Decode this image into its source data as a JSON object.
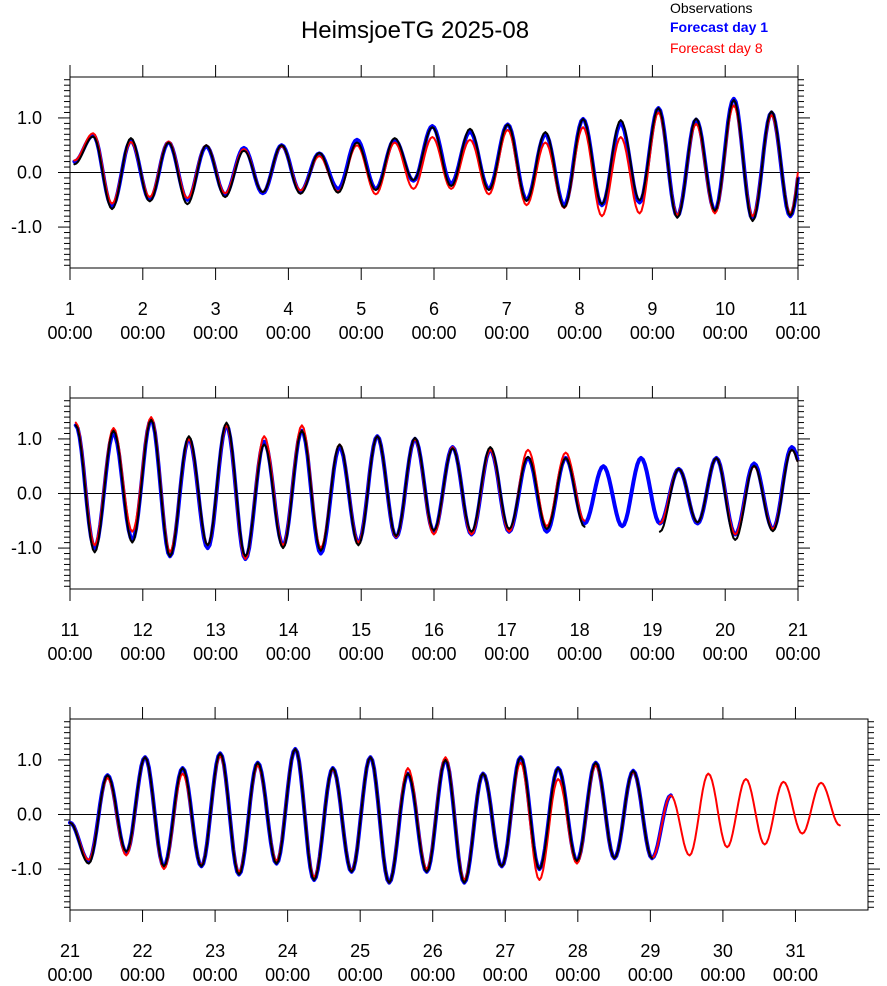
{
  "title": "HeimsjoeTG 2025-08",
  "legend": [
    {
      "label": "Observations",
      "color": "#000000",
      "bold": false
    },
    {
      "label": "Forecast day 1",
      "color": "#0000ff",
      "bold": true
    },
    {
      "label": "Forecast day 8",
      "color": "#ff0000",
      "bold": false
    }
  ],
  "chart_data": [
    {
      "type": "line",
      "xlim": [
        1,
        11
      ],
      "ylim": [
        -1.75,
        1.75
      ],
      "y_ticks": [
        "1.0",
        "0.0",
        "-1.0"
      ],
      "x_ticks": [
        {
          "day": "1",
          "time": "00:00"
        },
        {
          "day": "2",
          "time": "00:00"
        },
        {
          "day": "3",
          "time": "00:00"
        },
        {
          "day": "4",
          "time": "00:00"
        },
        {
          "day": "5",
          "time": "00:00"
        },
        {
          "day": "6",
          "time": "00:00"
        },
        {
          "day": "7",
          "time": "00:00"
        },
        {
          "day": "8",
          "time": "00:00"
        },
        {
          "day": "9",
          "time": "00:00"
        },
        {
          "day": "10",
          "time": "00:00"
        },
        {
          "day": "11",
          "time": "00:00"
        }
      ],
      "extrema": [
        0.2,
        0.68,
        -0.62,
        0.58,
        -0.5,
        0.55,
        -0.5,
        0.48,
        -0.4,
        0.45,
        -0.38,
        0.5,
        -0.35,
        0.35,
        -0.3,
        0.6,
        -0.3,
        0.6,
        -0.15,
        0.85,
        -0.2,
        0.75,
        -0.3,
        0.88,
        -0.5,
        0.7,
        -0.6,
        0.98,
        -0.6,
        0.9,
        -0.55,
        1.18,
        -0.8,
        0.97,
        -0.7,
        1.35,
        -0.85,
        1.1,
        -0.8,
        1.2
      ],
      "series": [
        {
          "name": "Observations",
          "color": "#000000",
          "width": 2,
          "dy": [
            -0.05,
            -0.02,
            -0.05,
            0.05,
            -0.03,
            0.0,
            -0.08,
            0.02,
            -0.05,
            -0.05,
            0.02,
            0.0,
            -0.04,
            0.01,
            -0.07,
            -0.05,
            -0.02,
            0.03,
            0.01,
            -0.02,
            -0.05,
            0.05,
            -0.02,
            0.0,
            -0.02,
            0.04,
            -0.04,
            0.0,
            0.02,
            0.06,
            0.04,
            0.0,
            -0.03,
            0.02,
            0.0,
            -0.02,
            -0.04,
            0.02,
            0.01,
            -0.02
          ]
        },
        {
          "name": "Forecast day 1",
          "color": "#0000ff",
          "width": 4,
          "dy": [
            0,
            0,
            0,
            0,
            0,
            0,
            0,
            0,
            0,
            0,
            0,
            0,
            0,
            0,
            0,
            0,
            0,
            0,
            0,
            0,
            0,
            0,
            0,
            0,
            0,
            0,
            0,
            0,
            0,
            0,
            0,
            0,
            0,
            0,
            0,
            0,
            0,
            0,
            0,
            0
          ]
        },
        {
          "name": "Forecast day 8",
          "color": "#ff0000",
          "width": 2,
          "dy": [
            0.02,
            0.04,
            0.05,
            -0.02,
            0.05,
            0.02,
            0.03,
            0.02,
            0.02,
            -0.02,
            0.02,
            -0.02,
            0.02,
            -0.05,
            -0.05,
            -0.1,
            -0.1,
            -0.05,
            -0.15,
            -0.2,
            -0.1,
            -0.15,
            -0.1,
            -0.1,
            -0.1,
            -0.15,
            -0.05,
            -0.15,
            -0.2,
            -0.25,
            -0.2,
            -0.08,
            0.02,
            -0.08,
            -0.05,
            -0.12,
            0.05,
            -0.05,
            0.05,
            0.2
          ]
        }
      ]
    },
    {
      "type": "line",
      "xlim": [
        11,
        21
      ],
      "ylim": [
        -1.75,
        1.75
      ],
      "y_ticks": [
        "1.0",
        "0.0",
        "-1.0"
      ],
      "x_ticks": [
        {
          "day": "11",
          "time": "00:00"
        },
        {
          "day": "12",
          "time": "00:00"
        },
        {
          "day": "13",
          "time": "00:00"
        },
        {
          "day": "14",
          "time": "00:00"
        },
        {
          "day": "15",
          "time": "00:00"
        },
        {
          "day": "16",
          "time": "00:00"
        },
        {
          "day": "17",
          "time": "00:00"
        },
        {
          "day": "18",
          "time": "00:00"
        },
        {
          "day": "19",
          "time": "00:00"
        },
        {
          "day": "20",
          "time": "00:00"
        },
        {
          "day": "21",
          "time": "00:00"
        }
      ],
      "extrema": [
        1.25,
        -1.0,
        1.1,
        -0.85,
        1.35,
        -1.15,
        1.0,
        -1.0,
        1.25,
        -1.2,
        0.95,
        -0.95,
        1.15,
        -1.1,
        0.85,
        -0.9,
        1.05,
        -0.8,
        1.0,
        -0.7,
        0.85,
        -0.75,
        0.8,
        -0.7,
        0.65,
        -0.7,
        0.65,
        -0.55,
        0.5,
        -0.6,
        0.65,
        -0.55,
        0.45,
        -0.55,
        0.65,
        -0.75,
        0.55,
        -0.65,
        0.85,
        -0.2
      ],
      "series": [
        {
          "name": "Observations",
          "color": "#000000",
          "width": 2,
          "dy": [
            0.0,
            -0.08,
            0.05,
            -0.05,
            0.0,
            0.0,
            0.05,
            0.05,
            0.05,
            0.05,
            -0.05,
            -0.05,
            0.0,
            0.05,
            0.05,
            -0.05,
            0.0,
            0.02,
            0.02,
            0.02,
            -0.02,
            0.05,
            0.05,
            0.05,
            0.02,
            0.05,
            0.0,
            -0.06,
            null,
            null,
            null,
            -0.15,
            0.0,
            0.02,
            0.0,
            -0.1,
            -0.04,
            -0.04,
            -0.05,
            0.0
          ]
        },
        {
          "name": "Forecast day 1",
          "color": "#0000ff",
          "width": 4,
          "dy": [
            0,
            0,
            0,
            0,
            0,
            0,
            0,
            0,
            0,
            0,
            0,
            0,
            0,
            0,
            0,
            0,
            0,
            0,
            0,
            0,
            0,
            0,
            0,
            0,
            0,
            0,
            0,
            0,
            0,
            0,
            0,
            0,
            0,
            0,
            0,
            0,
            0,
            0,
            0,
            0
          ]
        },
        {
          "name": "Forecast day 8",
          "color": "#ff0000",
          "width": 2,
          "dy": [
            0.05,
            0.05,
            0.1,
            0.15,
            0.05,
            0.08,
            0.0,
            0.05,
            0.0,
            0.0,
            0.1,
            0.0,
            0.1,
            0.1,
            0.05,
            0.0,
            0.0,
            0.0,
            0.0,
            -0.05,
            0.0,
            0.0,
            0.0,
            0.0,
            0.15,
            0.1,
            0.1,
            0.05,
            null,
            null,
            null,
            0.0,
            0.0,
            0.02,
            0.0,
            0.0,
            -0.05,
            0.0,
            -0.05,
            0.0
          ]
        }
      ]
    },
    {
      "type": "line",
      "xlim": [
        21,
        32
      ],
      "ylim": [
        -1.75,
        1.75
      ],
      "y_ticks": [
        "1.0",
        "0.0",
        "-1.0"
      ],
      "x_ticks": [
        {
          "day": "21",
          "time": "00:00"
        },
        {
          "day": "22",
          "time": "00:00"
        },
        {
          "day": "23",
          "time": "00:00"
        },
        {
          "day": "24",
          "time": "00:00"
        },
        {
          "day": "25",
          "time": "00:00"
        },
        {
          "day": "26",
          "time": "00:00"
        },
        {
          "day": "27",
          "time": "00:00"
        },
        {
          "day": "28",
          "time": "00:00"
        },
        {
          "day": "29",
          "time": "00:00"
        },
        {
          "day": "30",
          "time": "00:00"
        },
        {
          "day": "31",
          "time": "00:00"
        }
      ],
      "extrema": [
        -0.15,
        -0.85,
        0.72,
        -0.7,
        1.05,
        -0.95,
        0.85,
        -0.95,
        1.12,
        -1.1,
        0.95,
        -0.9,
        1.2,
        -1.2,
        0.85,
        -1.05,
        1.05,
        -1.25,
        0.75,
        -1.05,
        1.0,
        -1.25,
        0.75,
        -0.95,
        1.05,
        -1.0,
        0.85,
        -0.85,
        0.95,
        -0.8,
        0.8,
        -0.8,
        0.35,
        -0.75,
        0.75,
        -0.6,
        0.65,
        -0.55,
        0.6,
        -0.35,
        0.58,
        -0.2
      ],
      "series": [
        {
          "name": "Observations",
          "color": "#000000",
          "width": 2,
          "dy": [
            0.0,
            -0.05,
            0.0,
            0.02,
            0.0,
            0.0,
            0.0,
            0.0,
            0.0,
            0.0,
            0.0,
            0.0,
            0.0,
            0.0,
            0.0,
            0.0,
            0.0,
            0.0,
            0.0,
            0.0,
            0.0,
            0.0,
            0.0,
            0.0,
            0.0,
            0.0,
            0.0,
            0.0,
            0.0,
            0.0,
            0.0,
            0.0,
            null,
            null,
            null,
            null,
            null,
            null,
            null,
            null,
            null,
            null
          ]
        },
        {
          "name": "Forecast day 1",
          "color": "#0000ff",
          "width": 4,
          "dy": [
            0,
            0,
            0,
            0,
            0,
            0,
            0,
            0,
            0,
            0,
            0,
            0,
            0,
            0,
            0,
            0,
            0,
            0,
            0,
            0,
            0,
            0,
            0,
            0,
            0,
            0,
            0,
            0,
            0,
            0,
            0,
            0,
            0,
            null,
            null,
            null,
            null,
            null,
            null,
            null,
            null,
            null
          ]
        },
        {
          "name": "Forecast day 8",
          "color": "#ff0000",
          "width": 2,
          "dy": [
            0.0,
            0.02,
            -0.05,
            -0.05,
            0.0,
            -0.05,
            -0.1,
            0.02,
            -0.05,
            0.05,
            -0.05,
            0.05,
            0.0,
            0.05,
            -0.02,
            0.02,
            0.0,
            0.0,
            0.1,
            0.05,
            0.05,
            0.05,
            0.0,
            0.0,
            -0.1,
            -0.2,
            -0.2,
            -0.05,
            -0.05,
            0.0,
            -0.02,
            0.0,
            0.0,
            0.0,
            0.0,
            0.0,
            0.0,
            0.0,
            0.0,
            0.0,
            0.0,
            0.0
          ]
        }
      ]
    }
  ]
}
